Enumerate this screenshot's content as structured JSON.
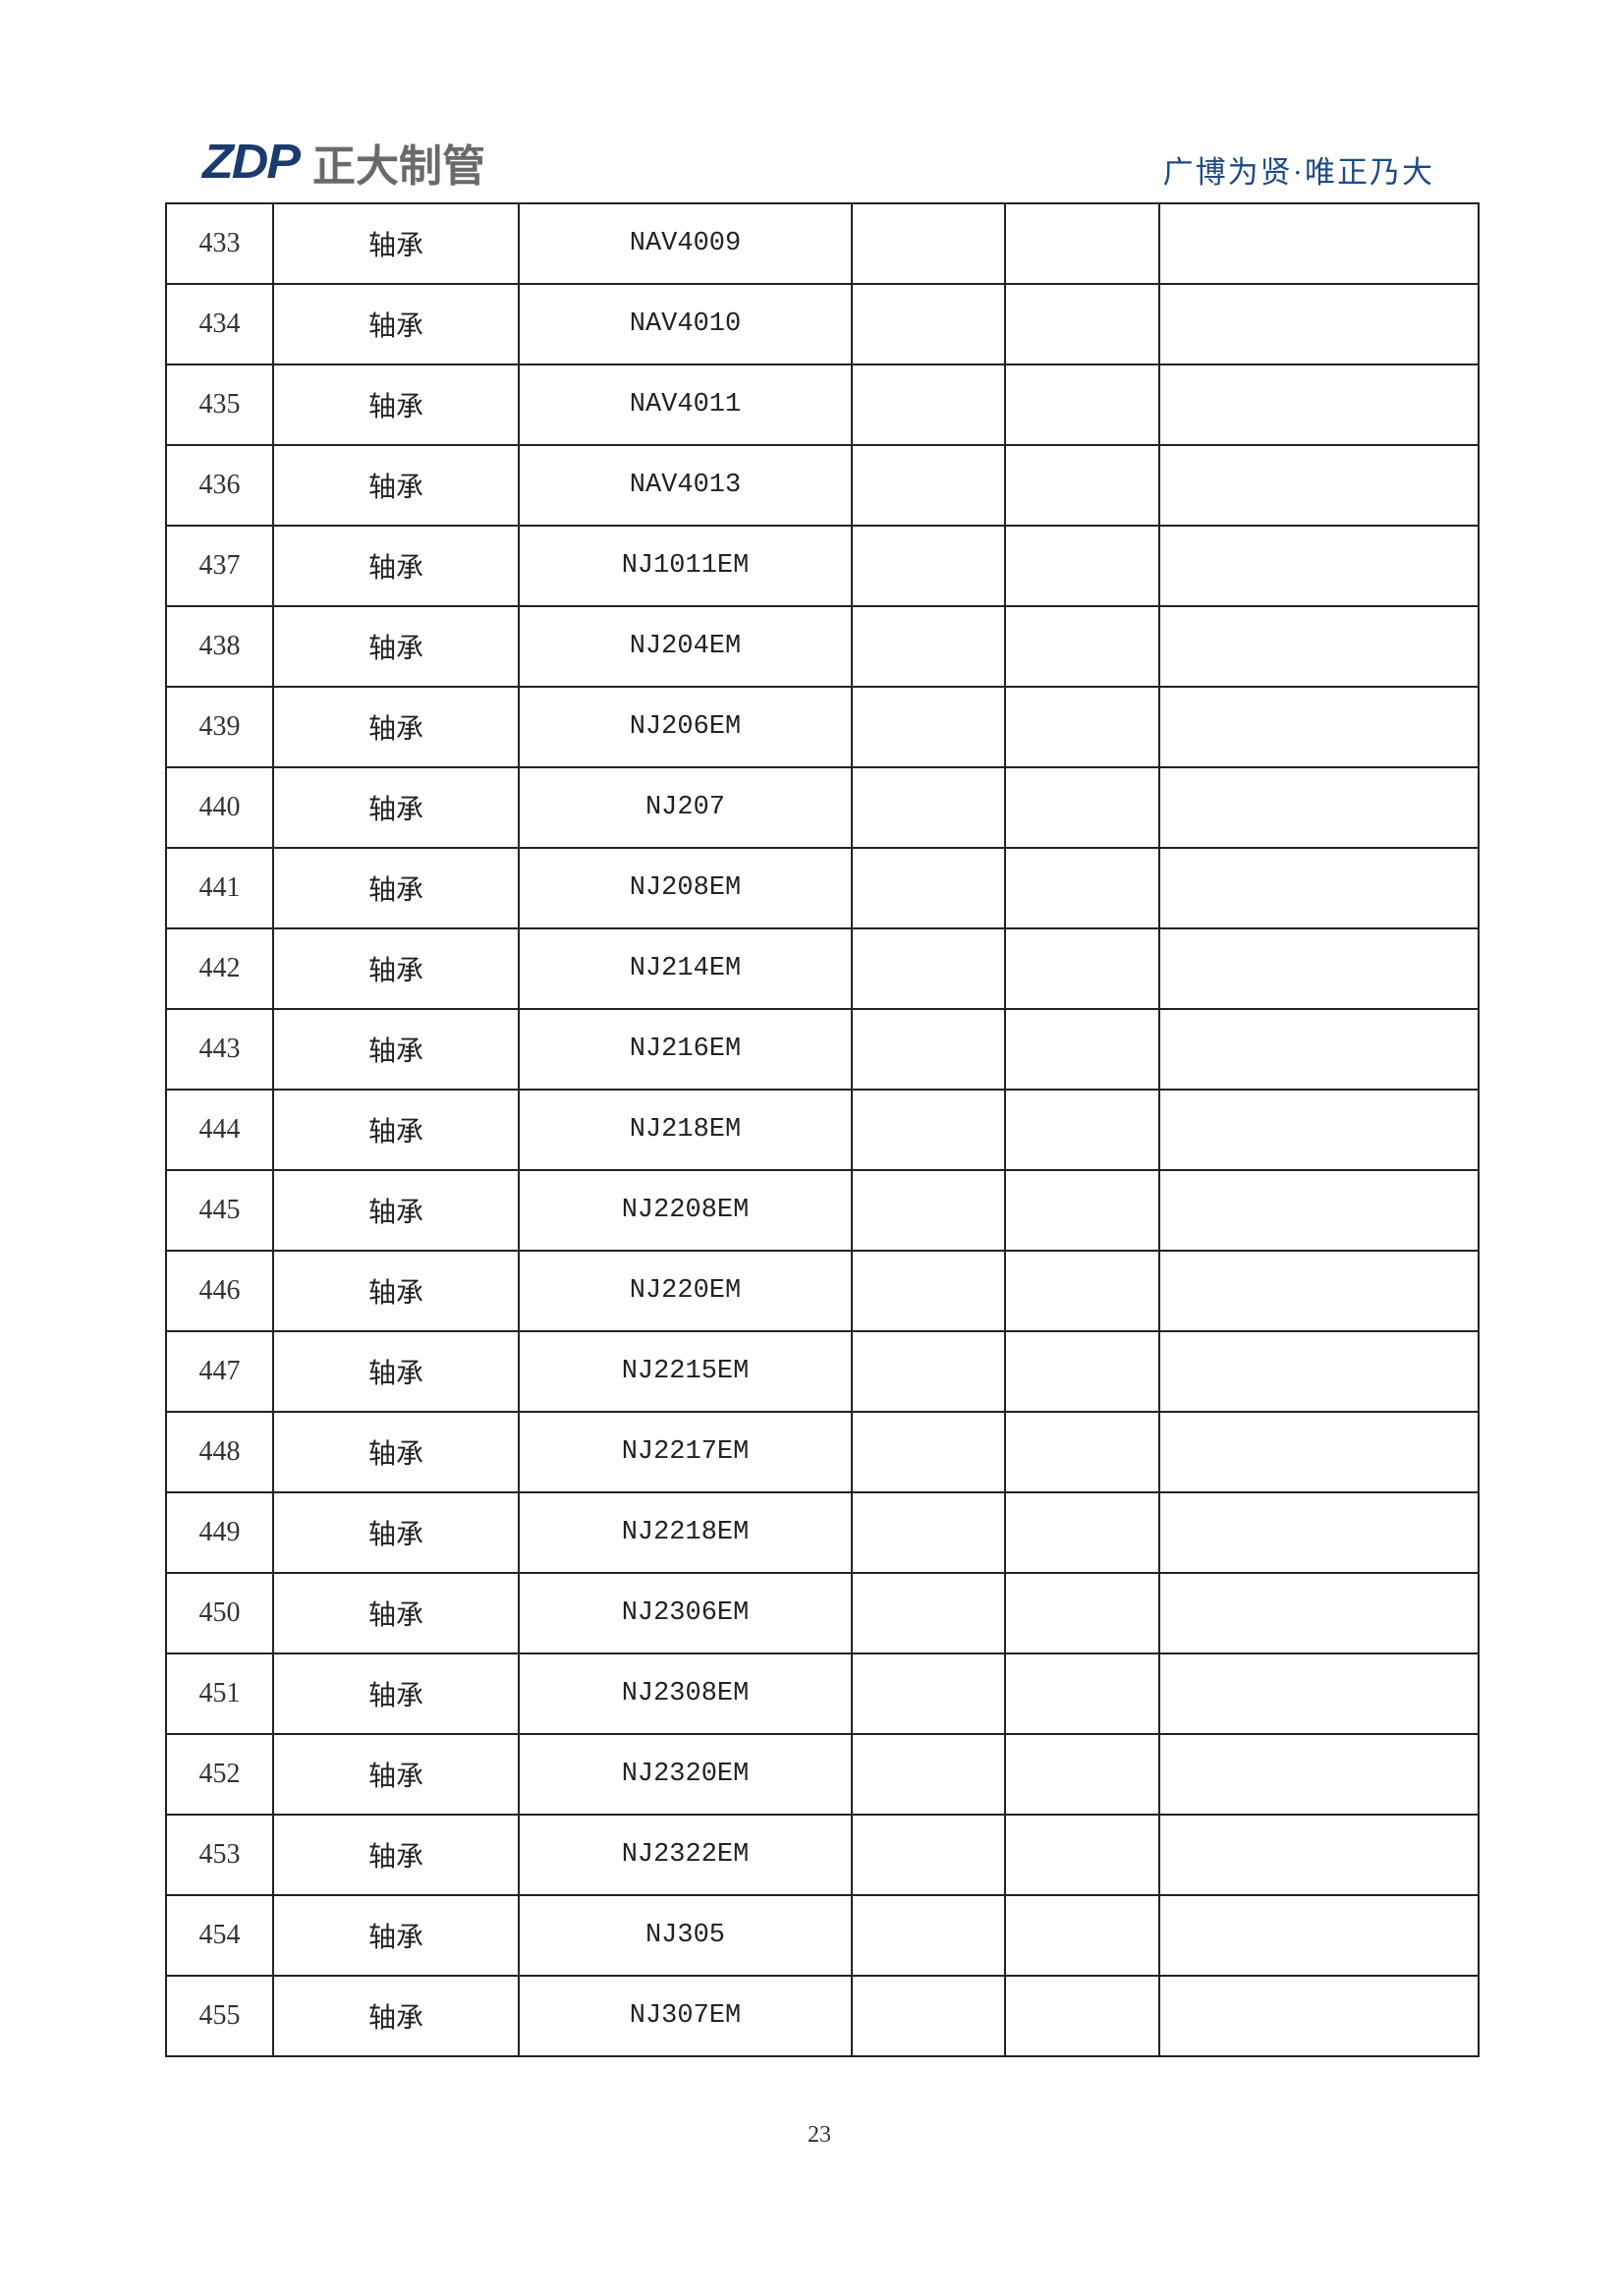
{
  "header": {
    "logo_text": "ZDP",
    "logo_company": "正大制管",
    "tagline": "广博为贤·唯正乃大",
    "brand_color": "#1b3a6e"
  },
  "table": {
    "rows": [
      {
        "no": "433",
        "name": "轴承",
        "model": "NAV4009"
      },
      {
        "no": "434",
        "name": "轴承",
        "model": "NAV4010"
      },
      {
        "no": "435",
        "name": "轴承",
        "model": "NAV4011"
      },
      {
        "no": "436",
        "name": "轴承",
        "model": "NAV4013"
      },
      {
        "no": "437",
        "name": "轴承",
        "model": "NJ1011EM"
      },
      {
        "no": "438",
        "name": "轴承",
        "model": "NJ204EM"
      },
      {
        "no": "439",
        "name": "轴承",
        "model": "NJ206EM"
      },
      {
        "no": "440",
        "name": "轴承",
        "model": "NJ207"
      },
      {
        "no": "441",
        "name": "轴承",
        "model": "NJ208EM"
      },
      {
        "no": "442",
        "name": "轴承",
        "model": "NJ214EM"
      },
      {
        "no": "443",
        "name": "轴承",
        "model": "NJ216EM"
      },
      {
        "no": "444",
        "name": "轴承",
        "model": "NJ218EM"
      },
      {
        "no": "445",
        "name": "轴承",
        "model": "NJ2208EM"
      },
      {
        "no": "446",
        "name": "轴承",
        "model": "NJ220EM"
      },
      {
        "no": "447",
        "name": "轴承",
        "model": "NJ2215EM"
      },
      {
        "no": "448",
        "name": "轴承",
        "model": "NJ2217EM"
      },
      {
        "no": "449",
        "name": "轴承",
        "model": "NJ2218EM"
      },
      {
        "no": "450",
        "name": "轴承",
        "model": "NJ2306EM"
      },
      {
        "no": "451",
        "name": "轴承",
        "model": "NJ2308EM"
      },
      {
        "no": "452",
        "name": "轴承",
        "model": "NJ2320EM"
      },
      {
        "no": "453",
        "name": "轴承",
        "model": "NJ2322EM"
      },
      {
        "no": "454",
        "name": "轴承",
        "model": "NJ305"
      },
      {
        "no": "455",
        "name": "轴承",
        "model": "NJ307EM"
      }
    ]
  },
  "footer": {
    "page_number": "23"
  }
}
